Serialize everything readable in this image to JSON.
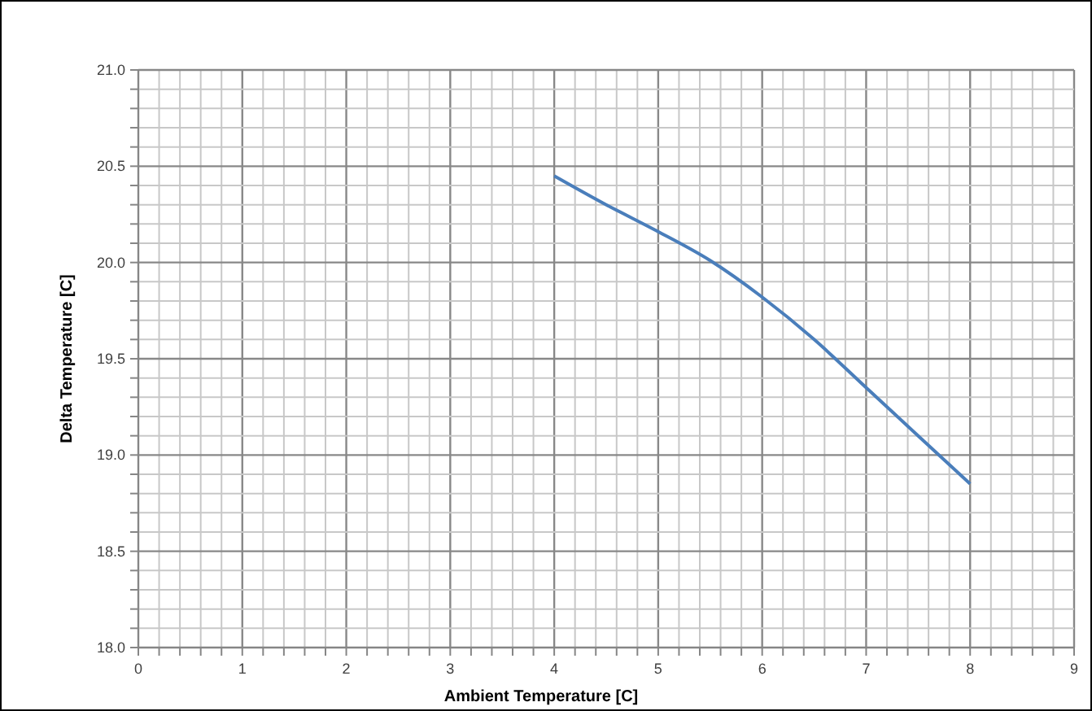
{
  "chart_data": {
    "type": "line",
    "xlabel": "Ambient Temperature [C]",
    "ylabel": "Delta Temperature [C]",
    "x": [
      4,
      4.5,
      5,
      5.5,
      6,
      6.5,
      7,
      7.5,
      8
    ],
    "series": [
      {
        "color": "#4a7ebb",
        "values": [
          20.45,
          20.3,
          20.16,
          20.01,
          19.82,
          19.6,
          19.35,
          19.1,
          18.85
        ]
      }
    ],
    "xlim": [
      0,
      9
    ],
    "ylim": [
      18,
      21
    ],
    "xticks": [
      0,
      {
        "value": 0.2,
        "label": null
      },
      {
        "value": 0.4,
        "label": null
      },
      {
        "value": 0.6,
        "label": null
      },
      {
        "value": 0.8,
        "label": null
      },
      1,
      {
        "value": 1.2,
        "label": null
      },
      {
        "value": 1.4,
        "label": null
      },
      {
        "value": 1.6,
        "label": null
      },
      {
        "value": 1.8,
        "label": null
      },
      2,
      {
        "value": 2.2,
        "label": null
      },
      {
        "value": 2.4,
        "label": null
      },
      {
        "value": 2.6,
        "label": null
      },
      {
        "value": 2.8,
        "label": null
      },
      3,
      {
        "value": 3.2,
        "label": null
      },
      {
        "value": 3.4,
        "label": null
      },
      {
        "value": 3.6,
        "label": null
      },
      {
        "value": 3.8,
        "label": null
      },
      4,
      {
        "value": 4.2,
        "label": null
      },
      {
        "value": 4.4,
        "label": null
      },
      {
        "value": 4.6,
        "label": null
      },
      {
        "value": 4.8,
        "label": null
      },
      5,
      {
        "value": 5.2,
        "label": null
      },
      {
        "value": 5.4,
        "label": null
      },
      {
        "value": 5.6,
        "label": null
      },
      {
        "value": 5.8,
        "label": null
      },
      6,
      {
        "value": 6.2,
        "label": null
      },
      {
        "value": 6.4,
        "label": null
      },
      {
        "value": 6.6,
        "label": null
      },
      {
        "value": 6.8,
        "label": null
      },
      7,
      {
        "value": 7.2,
        "label": null
      },
      {
        "value": 7.4,
        "label": null
      },
      {
        "value": 7.6,
        "label": null
      },
      {
        "value": 7.8,
        "label": null
      },
      8,
      {
        "value": 8.2,
        "label": null
      },
      {
        "value": 8.4,
        "label": null
      },
      {
        "value": 8.6,
        "label": null
      },
      {
        "value": 8.8,
        "label": null
      },
      9
    ],
    "yticks": [
      {
        "value": 18,
        "label": "18.0"
      },
      {
        "value": 18.1,
        "label": null
      },
      {
        "value": 18.2,
        "label": null
      },
      {
        "value": 18.3,
        "label": null
      },
      {
        "value": 18.4,
        "label": null
      },
      {
        "value": 18.5,
        "label": "18.5"
      },
      {
        "value": 18.6,
        "label": null
      },
      {
        "value": 18.7,
        "label": null
      },
      {
        "value": 18.8,
        "label": null
      },
      {
        "value": 18.9,
        "label": null
      },
      {
        "value": 19,
        "label": "19.0"
      },
      {
        "value": 19.1,
        "label": null
      },
      {
        "value": 19.2,
        "label": null
      },
      {
        "value": 19.3,
        "label": null
      },
      {
        "value": 19.4,
        "label": null
      },
      {
        "value": 19.5,
        "label": "19.5"
      },
      {
        "value": 19.6,
        "label": null
      },
      {
        "value": 19.7,
        "label": null
      },
      {
        "value": 19.8,
        "label": null
      },
      {
        "value": 19.9,
        "label": null
      },
      {
        "value": 20,
        "label": "20.0"
      },
      {
        "value": 20.1,
        "label": null
      },
      {
        "value": 20.2,
        "label": null
      },
      {
        "value": 20.3,
        "label": null
      },
      {
        "value": 20.4,
        "label": null
      },
      {
        "value": 20.5,
        "label": "20.5"
      },
      {
        "value": 20.6,
        "label": null
      },
      {
        "value": 20.7,
        "label": null
      },
      {
        "value": 20.8,
        "label": null
      },
      {
        "value": 20.9,
        "label": null
      },
      {
        "value": 21,
        "label": "21.0"
      }
    ],
    "grid": true,
    "marker": "none",
    "line_style": "solid"
  }
}
